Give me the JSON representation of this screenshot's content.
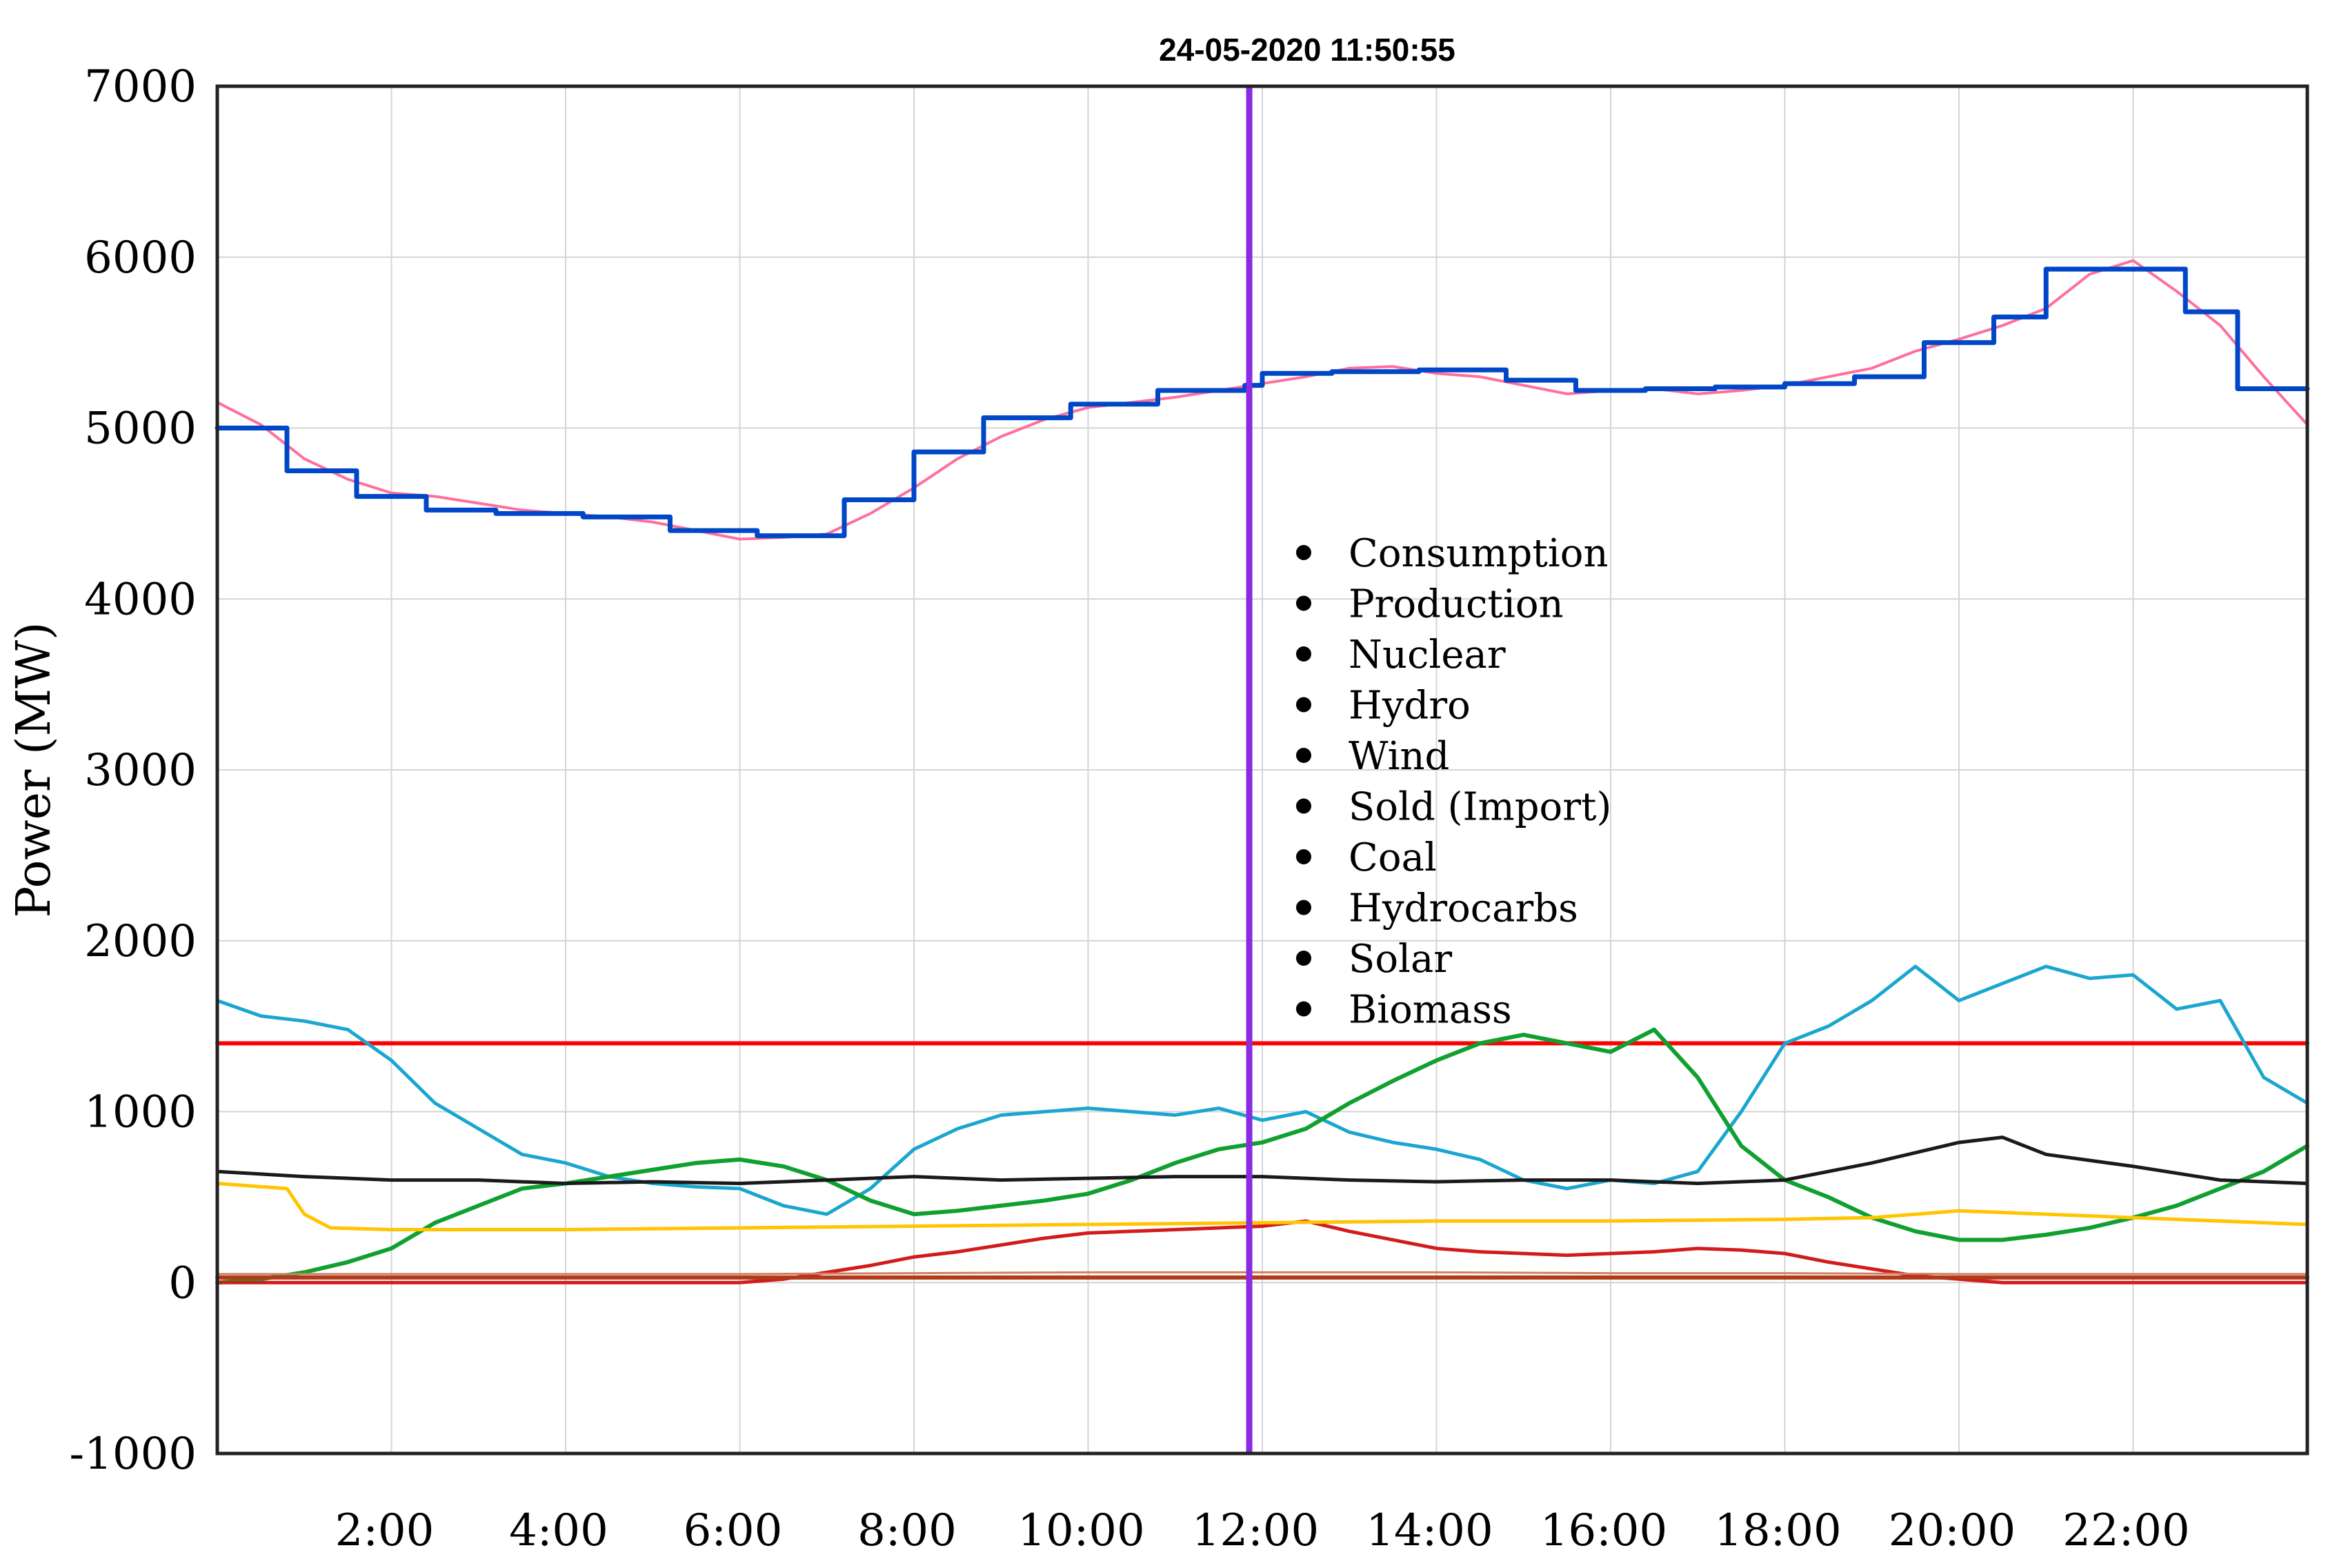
{
  "chart_data": {
    "type": "line",
    "title": "24-05-2020 11:50:55",
    "ylabel": "Power (MW)",
    "xlabel": "",
    "ylim": [
      -1000,
      7000
    ],
    "xlim": [
      0,
      24
    ],
    "yticks": [
      -1000,
      0,
      1000,
      2000,
      3000,
      4000,
      5000,
      6000,
      7000
    ],
    "xticks": [
      {
        "value": 2,
        "label": "2:00"
      },
      {
        "value": 4,
        "label": "4:00"
      },
      {
        "value": 6,
        "label": "6:00"
      },
      {
        "value": 8,
        "label": "8:00"
      },
      {
        "value": 10,
        "label": "10:00"
      },
      {
        "value": 12,
        "label": "12:00"
      },
      {
        "value": 14,
        "label": "14:00"
      },
      {
        "value": 16,
        "label": "16:00"
      },
      {
        "value": 18,
        "label": "18:00"
      },
      {
        "value": 20,
        "label": "20:00"
      },
      {
        "value": 22,
        "label": "22:00"
      }
    ],
    "grid": true,
    "legend_placement": "center",
    "cursor_time_hours": 11.85,
    "cursor_color": "#8a2be2",
    "legend": [
      "Consumption",
      "Production",
      "Nuclear",
      "Hydro",
      "Wind",
      "Sold (Import)",
      "Coal",
      "Hydrocarbs",
      "Solar",
      "Biomass"
    ],
    "series": [
      {
        "color": "#ff6f9c",
        "step": false,
        "width": 4,
        "x": [
          0,
          0.5,
          1,
          1.5,
          2,
          2.5,
          3,
          3.5,
          4,
          4.5,
          5,
          5.5,
          6,
          6.5,
          7,
          7.5,
          8,
          8.5,
          9,
          9.5,
          10,
          10.5,
          11,
          11.5,
          12,
          12.5,
          13,
          13.5,
          14,
          14.5,
          15,
          15.5,
          16,
          16.5,
          17,
          17.5,
          18,
          18.5,
          19,
          19.5,
          20,
          20.5,
          21,
          21.5,
          22,
          22.5,
          23,
          23.5,
          24
        ],
        "y": [
          5150,
          5020,
          4820,
          4700,
          4620,
          4600,
          4560,
          4520,
          4500,
          4480,
          4450,
          4400,
          4350,
          4360,
          4380,
          4500,
          4650,
          4820,
          4950,
          5050,
          5120,
          5150,
          5180,
          5220,
          5260,
          5300,
          5350,
          5360,
          5320,
          5300,
          5250,
          5200,
          5220,
          5230,
          5200,
          5220,
          5250,
          5300,
          5350,
          5450,
          5520,
          5600,
          5700,
          5900,
          5980,
          5800,
          5600,
          5300,
          5020
        ]
      },
      {
        "color": "#0047c8",
        "step": true,
        "width": 7,
        "x": [
          0,
          0.8,
          1.6,
          2.4,
          3.2,
          4.2,
          5.2,
          6.2,
          7.2,
          8,
          8.8,
          9.8,
          10.8,
          11.8,
          12,
          12.8,
          13.8,
          14.8,
          15.6,
          16.4,
          17.2,
          18,
          18.8,
          19.6,
          20.4,
          21,
          21.8,
          22.6,
          23.2,
          24
        ],
        "y": [
          5000,
          4750,
          4600,
          4520,
          4500,
          4480,
          4400,
          4370,
          4580,
          4860,
          5060,
          5140,
          5220,
          5250,
          5320,
          5330,
          5340,
          5280,
          5220,
          5230,
          5240,
          5260,
          5300,
          5500,
          5650,
          5930,
          5930,
          5680,
          5230,
          5230
        ]
      },
      {
        "color": "#ff0000",
        "step": false,
        "width": 6,
        "x": [
          0,
          24
        ],
        "y": [
          1400,
          1400
        ]
      },
      {
        "color": "#1aa6cf",
        "step": false,
        "width": 5,
        "x": [
          0,
          0.5,
          1,
          1.5,
          2,
          2.5,
          3,
          3.5,
          4,
          4.5,
          5,
          5.5,
          6,
          6.5,
          7,
          7.5,
          8,
          8.5,
          9,
          9.5,
          10,
          10.5,
          11,
          11.5,
          12,
          12.5,
          13,
          13.5,
          14,
          14.5,
          15,
          15.5,
          16,
          16.5,
          17,
          17.5,
          18,
          18.5,
          19,
          19.5,
          20,
          20.5,
          21,
          21.5,
          22,
          22.5,
          23,
          23.5,
          24
        ],
        "y": [
          1650,
          1560,
          1530,
          1480,
          1300,
          1050,
          900,
          750,
          700,
          620,
          580,
          560,
          550,
          450,
          400,
          550,
          780,
          900,
          980,
          1000,
          1020,
          1000,
          980,
          1020,
          950,
          1000,
          880,
          820,
          780,
          720,
          600,
          550,
          600,
          580,
          650,
          1000,
          1400,
          1500,
          1650,
          1850,
          1650,
          1750,
          1850,
          1780,
          1800,
          1600,
          1650,
          1200,
          1050
        ]
      },
      {
        "color": "#10a030",
        "step": false,
        "width": 6,
        "x": [
          0,
          0.5,
          1,
          1.5,
          2,
          2.5,
          3,
          3.5,
          4,
          4.5,
          5,
          5.5,
          6,
          6.5,
          7,
          7.5,
          8,
          8.5,
          9,
          9.5,
          10,
          10.5,
          11,
          11.5,
          12,
          12.5,
          13,
          13.5,
          14,
          14.5,
          15,
          15.5,
          16,
          16.5,
          17,
          17.5,
          18,
          18.5,
          19,
          19.5,
          20,
          20.5,
          21,
          21.5,
          22,
          22.5,
          23,
          23.5,
          24
        ],
        "y": [
          0,
          20,
          60,
          120,
          200,
          350,
          450,
          550,
          580,
          620,
          660,
          700,
          720,
          680,
          600,
          480,
          400,
          420,
          450,
          480,
          520,
          600,
          700,
          780,
          820,
          900,
          1050,
          1180,
          1300,
          1400,
          1450,
          1400,
          1350,
          1480,
          1200,
          800,
          600,
          500,
          380,
          300,
          250,
          250,
          280,
          320,
          380,
          450,
          550,
          650,
          800
        ]
      },
      {
        "color": "#d21c1c",
        "step": false,
        "width": 5,
        "x": [
          0,
          3,
          6,
          6.5,
          7,
          7.5,
          8,
          8.5,
          9,
          9.5,
          10,
          10.5,
          11,
          11.5,
          12,
          12.5,
          13,
          13.5,
          14,
          14.5,
          15,
          15.5,
          16,
          16.5,
          17,
          17.5,
          18,
          18.5,
          19,
          19.5,
          20,
          20.5,
          24
        ],
        "y": [
          0,
          0,
          0,
          20,
          60,
          100,
          150,
          180,
          220,
          260,
          290,
          300,
          310,
          320,
          330,
          360,
          300,
          250,
          200,
          180,
          170,
          160,
          170,
          180,
          200,
          190,
          170,
          120,
          80,
          40,
          20,
          0,
          0
        ]
      },
      {
        "color": "#1a1a1a",
        "step": false,
        "width": 5,
        "x": [
          0,
          1,
          2,
          3,
          4,
          5,
          6,
          7,
          8,
          9,
          10,
          11,
          12,
          13,
          14,
          15,
          16,
          17,
          18,
          19,
          20,
          20.5,
          21,
          22,
          23,
          24
        ],
        "y": [
          650,
          620,
          600,
          600,
          580,
          590,
          580,
          600,
          620,
          600,
          610,
          620,
          620,
          600,
          590,
          600,
          600,
          580,
          600,
          700,
          820,
          850,
          750,
          680,
          600,
          580
        ]
      },
      {
        "color": "#ffc500",
        "step": false,
        "width": 5,
        "x": [
          0,
          0.8,
          1,
          1.3,
          2,
          4,
          6,
          8,
          10,
          12,
          14,
          16,
          18,
          19,
          20,
          21,
          22,
          23,
          24
        ],
        "y": [
          580,
          550,
          400,
          320,
          310,
          310,
          320,
          330,
          340,
          350,
          360,
          360,
          370,
          380,
          420,
          400,
          380,
          360,
          340
        ]
      },
      {
        "color": "#b03a1a",
        "step": false,
        "width": 6,
        "x": [
          0,
          24
        ],
        "y": [
          30,
          30
        ]
      },
      {
        "color": "#d08060",
        "step": false,
        "width": 3,
        "x": [
          0,
          6,
          8,
          10,
          12,
          14,
          16,
          18,
          20,
          22,
          24
        ],
        "y": [
          50,
          50,
          55,
          60,
          60,
          60,
          55,
          55,
          50,
          50,
          50
        ]
      }
    ]
  }
}
